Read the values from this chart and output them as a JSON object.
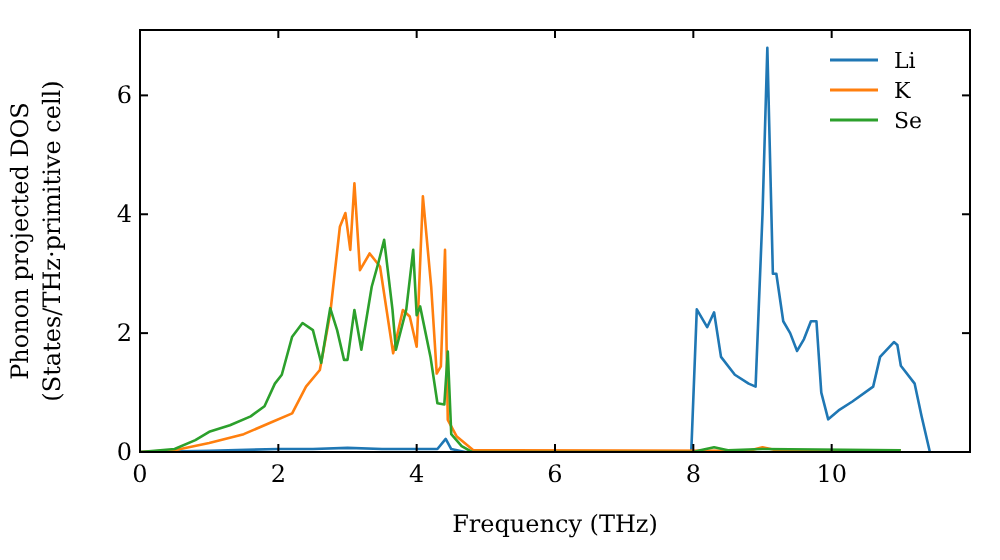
{
  "chart_data": {
    "type": "line",
    "xlabel": "Frequency (THz)",
    "ylabel": "Phonon projected DOS\n(States/THz·primitive cell)",
    "xlim": [
      0,
      12
    ],
    "ylim": [
      0,
      7.1
    ],
    "xticks": [
      0,
      2,
      4,
      6,
      8,
      10
    ],
    "yticks": [
      0,
      2,
      4,
      6
    ],
    "grid": false,
    "legend": "top right",
    "marker": "none",
    "line_style": "solid",
    "series": [
      {
        "name": "Li",
        "color": "#1f77b4",
        "x": [
          0,
          1,
          2,
          2.5,
          3,
          3.5,
          4,
          4.3,
          4.42,
          4.5,
          4.7,
          7.97,
          8.05,
          8.2,
          8.3,
          8.4,
          8.6,
          8.8,
          8.9,
          9.0,
          9.07,
          9.15,
          9.2,
          9.3,
          9.4,
          9.5,
          9.6,
          9.7,
          9.78,
          9.85,
          9.95,
          10.1,
          10.3,
          10.6,
          10.7,
          10.9,
          10.95,
          11.0,
          11.2,
          11.3,
          11.42
        ],
        "values": [
          0,
          0.02,
          0.05,
          0.05,
          0.07,
          0.05,
          0.05,
          0.05,
          0.22,
          0.05,
          0,
          0,
          2.4,
          2.1,
          2.35,
          1.6,
          1.3,
          1.15,
          1.1,
          4,
          6.8,
          3.0,
          3.0,
          2.2,
          2.0,
          1.7,
          1.9,
          2.2,
          2.2,
          1.0,
          0.55,
          0.7,
          0.85,
          1.1,
          1.6,
          1.85,
          1.8,
          1.45,
          1.15,
          0.6,
          0
        ]
      },
      {
        "name": "K",
        "color": "#ff7f0e",
        "x": [
          0,
          0.5,
          1.0,
          1.5,
          1.9,
          2.2,
          2.4,
          2.6,
          2.75,
          2.89,
          2.97,
          3.04,
          3.1,
          3.18,
          3.32,
          3.47,
          3.66,
          3.8,
          3.9,
          4.0,
          4.09,
          4.21,
          4.29,
          4.35,
          4.41,
          4.45,
          4.58,
          4.82,
          8.8,
          9.0,
          9.2,
          11
        ],
        "values": [
          0,
          0.03,
          0.15,
          0.3,
          0.5,
          0.65,
          1.1,
          1.38,
          2.33,
          3.79,
          4.02,
          3.4,
          4.52,
          3.06,
          3.34,
          3.12,
          1.66,
          2.39,
          2.28,
          1.77,
          4.3,
          2.78,
          1.32,
          1.44,
          3.4,
          0.54,
          0.26,
          0.03,
          0.02,
          0.08,
          0.03,
          0.03
        ]
      },
      {
        "name": "Se",
        "color": "#2ca02c",
        "x": [
          0,
          0.5,
          0.8,
          1.0,
          1.3,
          1.6,
          1.8,
          1.95,
          2.05,
          2.2,
          2.35,
          2.5,
          2.62,
          2.75,
          2.85,
          2.95,
          3.0,
          3.1,
          3.2,
          3.35,
          3.45,
          3.53,
          3.65,
          3.7,
          3.85,
          3.95,
          4.0,
          4.05,
          4.2,
          4.3,
          4.4,
          4.45,
          4.5,
          4.65,
          4.8,
          8.0,
          8.1,
          8.3,
          8.5,
          9.0,
          11
        ],
        "values": [
          0,
          0.05,
          0.2,
          0.34,
          0.45,
          0.6,
          0.77,
          1.15,
          1.3,
          1.94,
          2.17,
          2.05,
          1.5,
          2.42,
          2.05,
          1.55,
          1.55,
          2.39,
          1.72,
          2.78,
          3.2,
          3.57,
          2.4,
          1.72,
          2.4,
          3.4,
          2.3,
          2.45,
          1.6,
          0.82,
          0.8,
          1.69,
          0.3,
          0.1,
          0,
          0,
          0.03,
          0.08,
          0.03,
          0.05,
          0.03
        ]
      }
    ]
  }
}
